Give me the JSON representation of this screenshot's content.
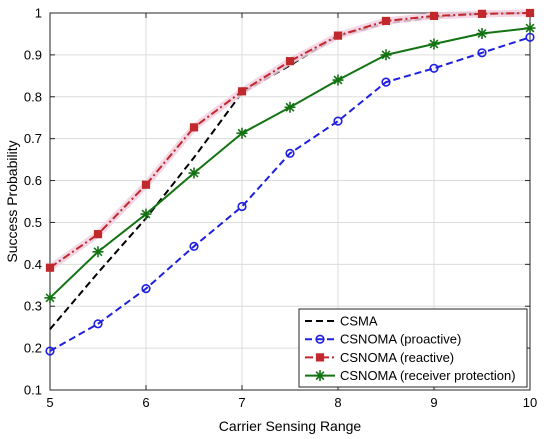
{
  "chart_data": {
    "type": "line",
    "title": "",
    "xlabel": "Carrier Sensing Range",
    "ylabel": "Success Probability",
    "xlim": [
      5,
      10
    ],
    "ylim": [
      0.1,
      1
    ],
    "xticks": [
      5,
      6,
      7,
      8,
      9,
      10
    ],
    "yticks": [
      0.1,
      0.2,
      0.3,
      0.4,
      0.5,
      0.6,
      0.7,
      0.8,
      0.9,
      1
    ],
    "ytick_labels": [
      "0.1",
      "0.2",
      "0.3",
      "0.4",
      "0.5",
      "0.6",
      "0.7",
      "0.8",
      "0.9",
      "1"
    ],
    "xtick_labels": [
      "5",
      "6",
      "7",
      "8",
      "9",
      "10"
    ],
    "grid": true,
    "legend_position": "bottom-right",
    "series": [
      {
        "name": "CSMA",
        "color": "#000000",
        "line_style": "dashed",
        "marker": "none",
        "x": [
          5,
          5.5,
          6,
          6.5,
          7,
          7.5,
          8,
          8.5,
          9,
          9.5,
          10
        ],
        "y": [
          0.245,
          0.38,
          0.51,
          0.655,
          0.81,
          0.875,
          0.945,
          0.975,
          0.99,
          0.998,
          1.0
        ]
      },
      {
        "name": "CSNOMA (proactive)",
        "color": "#1f1fe0",
        "line_style": "dashed",
        "marker": "circle",
        "x": [
          5,
          5.5,
          6,
          6.5,
          7,
          7.5,
          8,
          8.5,
          9,
          9.5,
          10
        ],
        "y": [
          0.193,
          0.258,
          0.342,
          0.443,
          0.538,
          0.665,
          0.742,
          0.835,
          0.868,
          0.905,
          0.942
        ]
      },
      {
        "name": "CSNOMA (reactive)",
        "color": "#c0282b",
        "line_style": "dashdot",
        "marker": "square",
        "x": [
          5,
          5.5,
          6,
          6.5,
          7,
          7.5,
          8,
          8.5,
          9,
          9.5,
          10
        ],
        "y": [
          0.392,
          0.472,
          0.59,
          0.727,
          0.813,
          0.885,
          0.946,
          0.981,
          0.993,
          0.998,
          1.0
        ]
      },
      {
        "name": "CSNOMA (receiver protection)",
        "color": "#137313",
        "line_style": "solid",
        "marker": "asterisk",
        "x": [
          5,
          5.5,
          6,
          6.5,
          7,
          7.5,
          8,
          8.5,
          9,
          9.5,
          10
        ],
        "y": [
          0.32,
          0.43,
          0.52,
          0.618,
          0.713,
          0.775,
          0.84,
          0.9,
          0.926,
          0.951,
          0.964
        ]
      }
    ]
  }
}
